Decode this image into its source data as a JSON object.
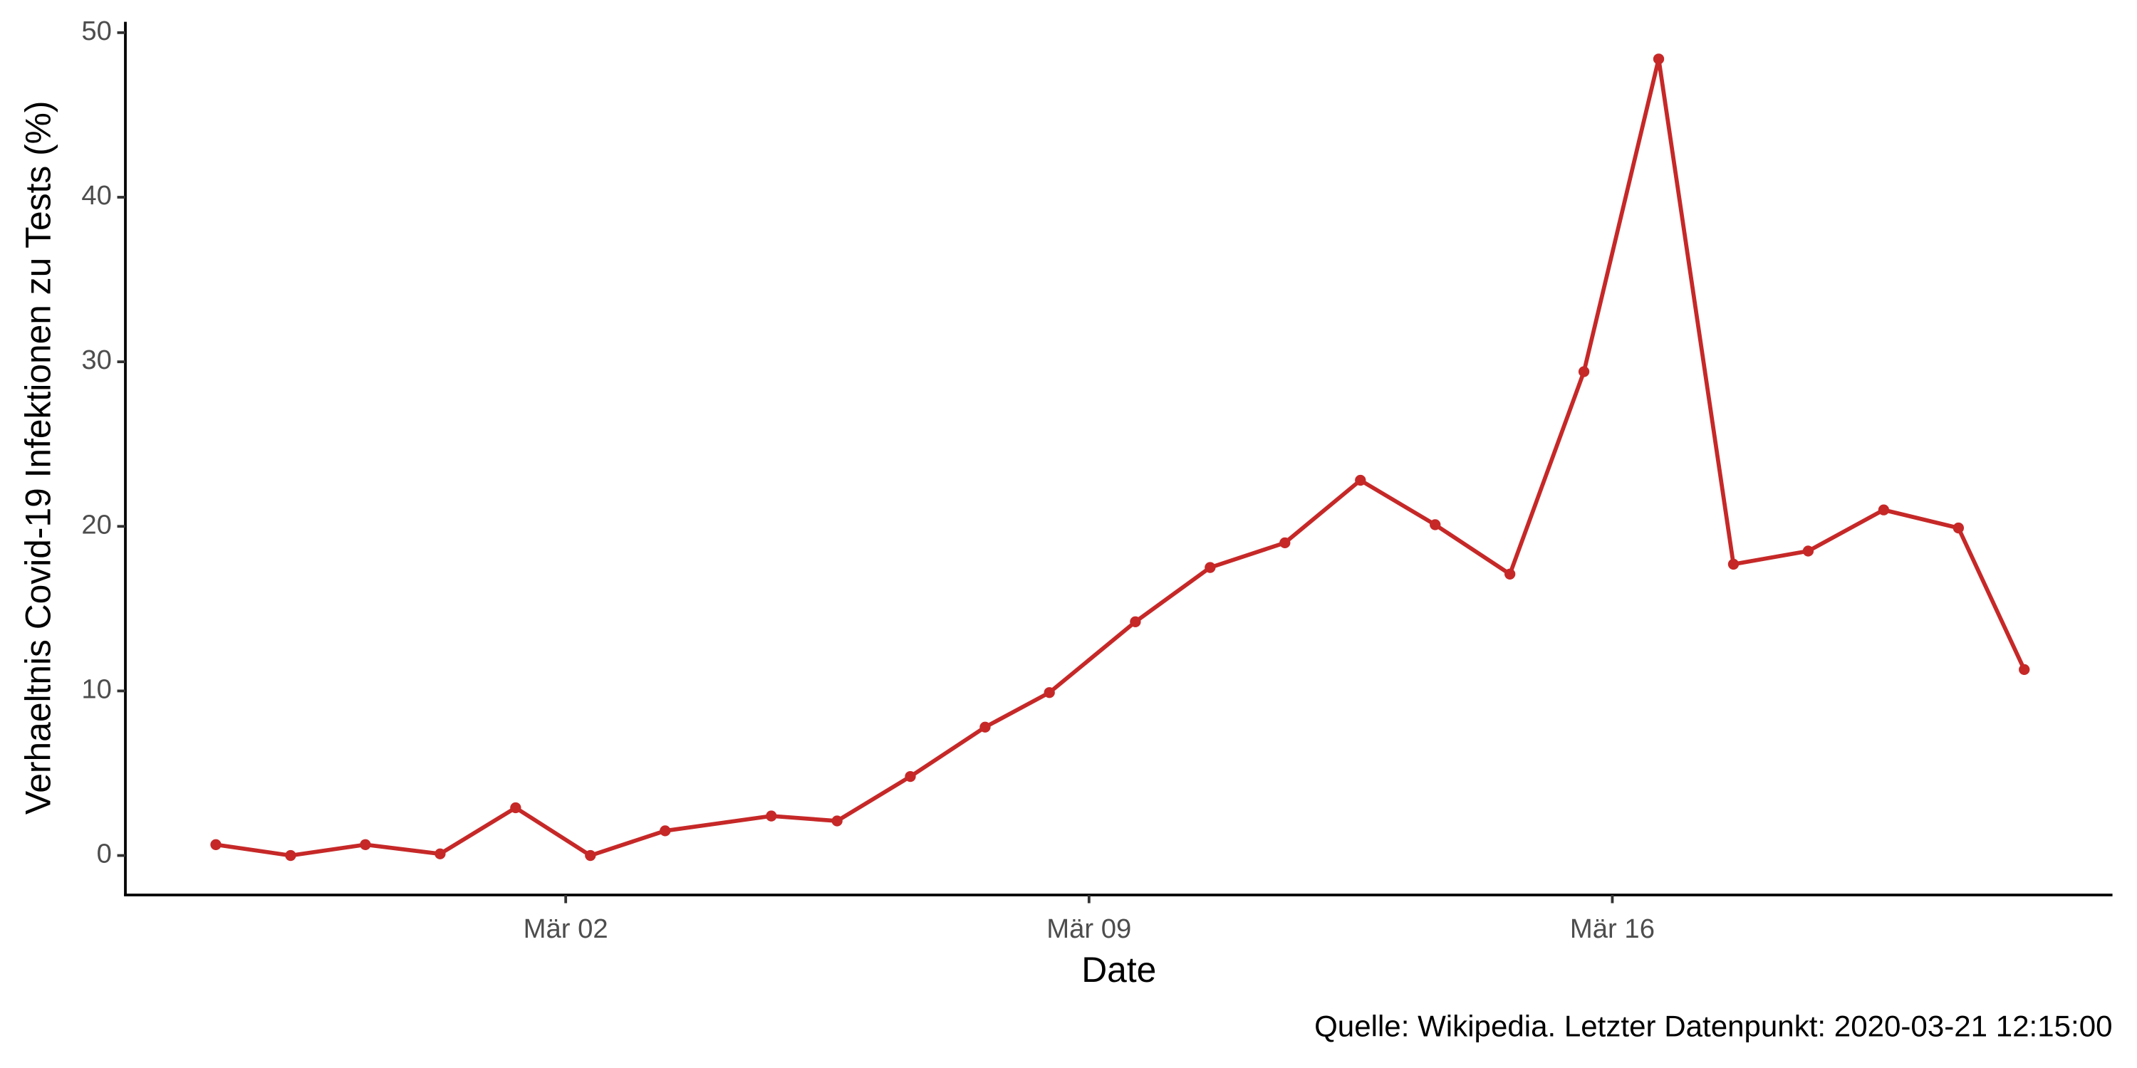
{
  "chart_data": {
    "type": "line",
    "x": [
      -2.68,
      -1.68,
      -0.68,
      0.32,
      1.33,
      2.33,
      3.33,
      4.75,
      5.63,
      6.61,
      7.61,
      8.47,
      9.62,
      10.62,
      11.62,
      12.63,
      13.63,
      14.63,
      15.62,
      16.62,
      17.62,
      18.62,
      19.63,
      20.63,
      21.51
    ],
    "series": [
      {
        "color": "#c62828",
        "values": [
          0.66,
          0,
          0.66,
          0.1,
          2.9,
          0,
          1.5,
          2.4,
          2.1,
          4.8,
          7.8,
          9.9,
          14.2,
          17.5,
          19.0,
          22.8,
          20.1,
          17.1,
          29.4,
          48.4,
          17.7,
          18.5,
          21.0,
          19.9,
          11.3
        ]
      }
    ],
    "xlim": [
      -3.89,
      22.69
    ],
    "xticks": [
      {
        "value": 2,
        "label": "Mär 02"
      },
      {
        "value": 9,
        "label": "Mär 09"
      },
      {
        "value": 16,
        "label": "Mär 16"
      }
    ],
    "ylim": [
      -2.4,
      50.66
    ],
    "yticks": [
      0,
      10,
      20,
      30,
      40,
      50
    ],
    "xlabel": "Date",
    "ylabel": "Verhaeltnis Covid-19 Infektionen zu Tests (%)",
    "caption": "Quelle: Wikipedia. Letzter Datenpunkt: 2020-03-21 12:15:00",
    "grid": false
  }
}
